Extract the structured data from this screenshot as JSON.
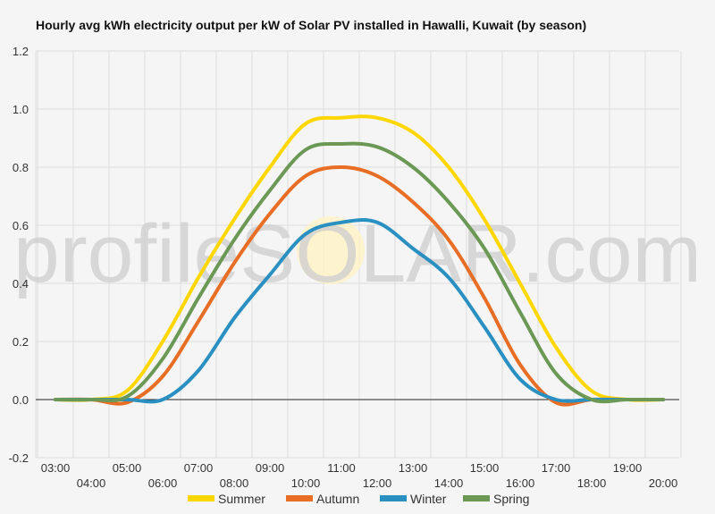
{
  "chart_data": {
    "type": "line",
    "title": "Hourly avg kWh electricity output per kW of Solar PV installed in Hawalli, Kuwait (by season)",
    "watermark": "profileSOLAR.com",
    "ylim": [
      -0.2,
      1.2
    ],
    "y_ticks": [
      "-0.2",
      "0.0",
      "0.2",
      "0.4",
      "0.6",
      "0.8",
      "1.0",
      "1.2"
    ],
    "y_tick_values": [
      -0.2,
      0,
      0.2,
      0.4,
      0.6,
      0.8,
      1.0,
      1.2
    ],
    "x": [
      "03:00",
      "04:00",
      "05:00",
      "06:00",
      "07:00",
      "08:00",
      "09:00",
      "10:00",
      "11:00",
      "12:00",
      "13:00",
      "14:00",
      "15:00",
      "16:00",
      "17:00",
      "18:00",
      "19:00",
      "20:00"
    ],
    "grid": true,
    "legend_position": "bottom",
    "series": [
      {
        "name": "Summer",
        "color": "#ffd700",
        "values": [
          0,
          0,
          0.03,
          0.2,
          0.42,
          0.62,
          0.8,
          0.95,
          0.97,
          0.97,
          0.92,
          0.8,
          0.62,
          0.4,
          0.18,
          0.03,
          0,
          0
        ]
      },
      {
        "name": "Autumn",
        "color": "#e86e25",
        "values": [
          0,
          0,
          -0.01,
          0.08,
          0.27,
          0.47,
          0.64,
          0.77,
          0.8,
          0.77,
          0.68,
          0.55,
          0.35,
          0.12,
          -0.01,
          0,
          0,
          0
        ]
      },
      {
        "name": "Winter",
        "color": "#2a8fc1",
        "values": [
          0,
          0,
          0,
          0,
          0.1,
          0.28,
          0.43,
          0.57,
          0.61,
          0.61,
          0.52,
          0.42,
          0.25,
          0.07,
          0,
          0,
          0,
          0
        ]
      },
      {
        "name": "Spring",
        "color": "#6b9955",
        "values": [
          0,
          0,
          0.01,
          0.14,
          0.35,
          0.55,
          0.72,
          0.86,
          0.88,
          0.87,
          0.8,
          0.68,
          0.52,
          0.3,
          0.09,
          0,
          0,
          0
        ]
      }
    ]
  }
}
